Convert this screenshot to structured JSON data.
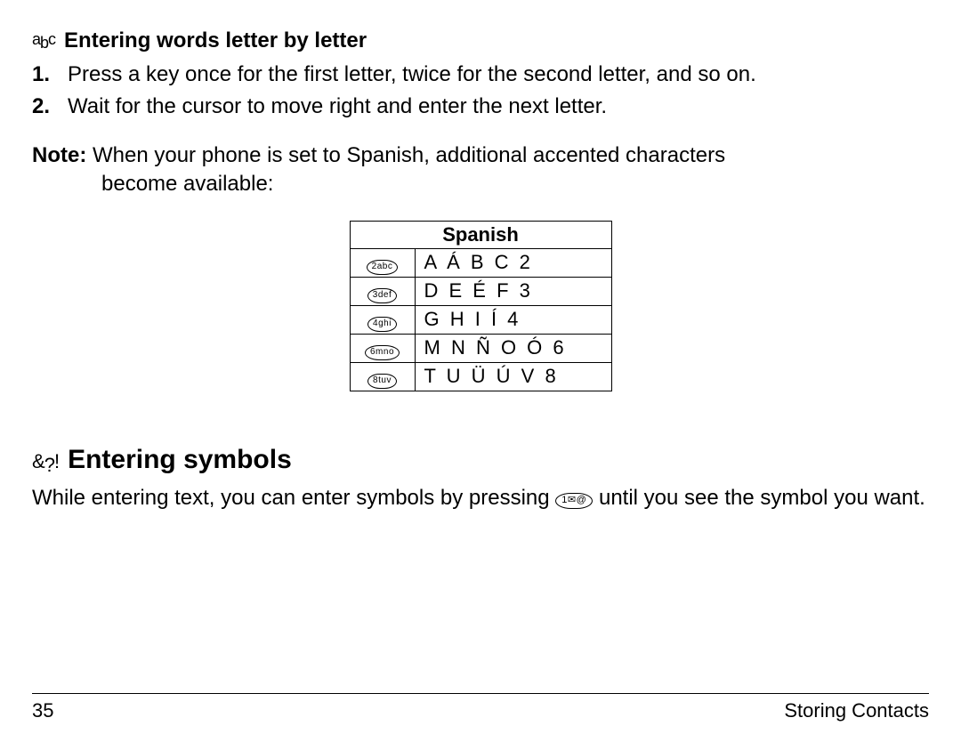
{
  "section1": {
    "icon_parts": [
      "a",
      "b",
      "c"
    ],
    "heading": "Entering words letter by letter",
    "steps": [
      {
        "num": "1.",
        "text": "Press a key once for the first letter, twice for the second letter, and so on."
      },
      {
        "num": "2.",
        "text": "Wait for the cursor to move right and enter the next letter."
      }
    ],
    "note_label": "Note:",
    "note_line1": "When your phone is set to Spanish, additional accented characters",
    "note_line2": "become available:"
  },
  "table": {
    "header": "Spanish",
    "rows": [
      {
        "key": "2abc",
        "chars": "A Á B C 2"
      },
      {
        "key": "3def",
        "chars": "D E É F 3"
      },
      {
        "key": "4ghi",
        "chars": "G H I Í 4"
      },
      {
        "key": "6mno",
        "chars": "M N Ñ O Ó 6"
      },
      {
        "key": "8tuv",
        "chars": "T U Ü Ú V 8"
      }
    ]
  },
  "section2": {
    "icon_parts": [
      "&",
      "?",
      "!"
    ],
    "heading": "Entering symbols",
    "body_pre": "While entering text, you can enter symbols by pressing ",
    "key_label": "1✉@",
    "body_post": " until you see the symbol you want."
  },
  "footer": {
    "page": "35",
    "title": "Storing Contacts"
  }
}
